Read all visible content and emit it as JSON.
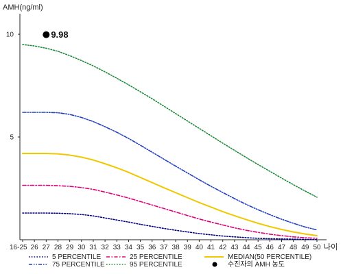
{
  "chart_data": {
    "type": "line",
    "ylabel": "AMH(ng/ml)",
    "xlabel": "나이",
    "y_ticks": [
      5,
      10
    ],
    "ylim": [
      0,
      11
    ],
    "categories": [
      "16-25",
      "26",
      "27",
      "28",
      "29",
      "30",
      "31",
      "32",
      "33",
      "34",
      "35",
      "36",
      "37",
      "38",
      "39",
      "40",
      "41",
      "42",
      "43",
      "44",
      "45",
      "46",
      "47",
      "48",
      "49",
      "50"
    ],
    "grid": false,
    "legend_position": "bottom",
    "series": [
      {
        "name": "5 PERCENTILE",
        "color": "#000080",
        "style": "dotted",
        "values": [
          1.3,
          1.3,
          1.3,
          1.29,
          1.27,
          1.23,
          1.16,
          1.06,
          0.96,
          0.86,
          0.75,
          0.65,
          0.55,
          0.46,
          0.38,
          0.3,
          0.24,
          0.18,
          0.14,
          0.1,
          0.07,
          0.05,
          0.04,
          0.03,
          0.02,
          0.01
        ]
      },
      {
        "name": "25 PERCENTILE",
        "color": "#e0007a",
        "style": "dashdot",
        "values": [
          2.65,
          2.65,
          2.65,
          2.63,
          2.6,
          2.54,
          2.45,
          2.32,
          2.18,
          2.03,
          1.86,
          1.69,
          1.52,
          1.35,
          1.18,
          1.01,
          0.86,
          0.72,
          0.58,
          0.46,
          0.36,
          0.27,
          0.2,
          0.14,
          0.1,
          0.07
        ]
      },
      {
        "name": "MEDIAN(50 PERCENTILE)",
        "color": "#f0c800",
        "style": "solid",
        "values": [
          4.2,
          4.2,
          4.2,
          4.18,
          4.12,
          4.02,
          3.88,
          3.7,
          3.5,
          3.28,
          3.03,
          2.78,
          2.53,
          2.29,
          2.05,
          1.81,
          1.59,
          1.37,
          1.17,
          0.98,
          0.8,
          0.64,
          0.5,
          0.38,
          0.28,
          0.2
        ]
      },
      {
        "name": "75 PERCENTILE",
        "color": "#2040c0",
        "style": "dashdotdot",
        "values": [
          6.2,
          6.2,
          6.2,
          6.18,
          6.1,
          5.95,
          5.75,
          5.5,
          5.23,
          4.93,
          4.6,
          4.26,
          3.92,
          3.58,
          3.25,
          2.92,
          2.6,
          2.3,
          2.0,
          1.72,
          1.46,
          1.22,
          1.0,
          0.8,
          0.62,
          0.48
        ]
      },
      {
        "name": "95 PERCENTILE",
        "color": "#1e8a3a",
        "style": "dotted",
        "values": [
          9.5,
          9.43,
          9.32,
          9.17,
          8.96,
          8.72,
          8.46,
          8.17,
          7.86,
          7.54,
          7.2,
          6.86,
          6.5,
          6.14,
          5.78,
          5.42,
          5.06,
          4.7,
          4.35,
          4.0,
          3.66,
          3.33,
          3.0,
          2.68,
          2.37,
          2.07
        ]
      }
    ],
    "marker": {
      "legend_label": "수진자의 AMH 농도",
      "category": "27",
      "value": 9.98,
      "label": "9.98",
      "color": "#000000"
    }
  }
}
